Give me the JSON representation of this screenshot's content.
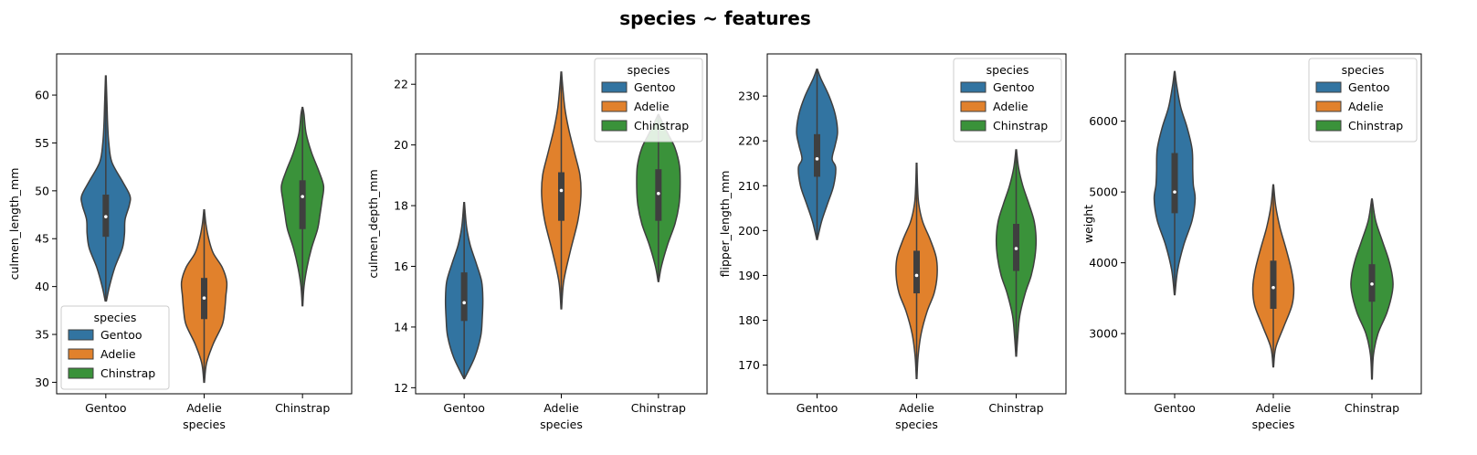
{
  "title": "species ~ features",
  "legend_title": "species",
  "colors": {
    "Gentoo": "#3274a1",
    "Adelie": "#e1812c",
    "Chinstrap": "#3a923a",
    "outline": "#3f3f3f",
    "box": "#3f3f3f",
    "median": "#ffffff"
  },
  "chart_data": [
    {
      "type": "violin",
      "xlabel": "species",
      "ylabel": "culmen_length_mm",
      "categories": [
        "Gentoo",
        "Adelie",
        "Chinstrap"
      ],
      "ylim": [
        28.8,
        64.3
      ],
      "yticks": [
        30,
        35,
        40,
        45,
        50,
        55,
        60
      ],
      "legend_position": "lower-left",
      "series": [
        {
          "name": "Gentoo",
          "min": 38.5,
          "q1": 45.2,
          "median": 47.3,
          "q3": 49.6,
          "max": 62.0,
          "profile": [
            [
              38.5,
              0.02
            ],
            [
              40,
              0.12
            ],
            [
              42,
              0.3
            ],
            [
              44,
              0.55
            ],
            [
              45.5,
              0.62
            ],
            [
              47,
              0.64
            ],
            [
              48.5,
              0.78
            ],
            [
              49.5,
              0.8
            ],
            [
              51,
              0.55
            ],
            [
              53,
              0.2
            ],
            [
              55,
              0.1
            ],
            [
              57,
              0.06
            ],
            [
              59,
              0.04
            ],
            [
              62,
              0.01
            ]
          ]
        },
        {
          "name": "Adelie",
          "min": 30.0,
          "q1": 36.6,
          "median": 38.8,
          "q3": 40.9,
          "max": 48.0,
          "profile": [
            [
              30,
              0.01
            ],
            [
              32,
              0.08
            ],
            [
              34,
              0.3
            ],
            [
              36,
              0.6
            ],
            [
              37.5,
              0.68
            ],
            [
              39,
              0.72
            ],
            [
              40.5,
              0.75
            ],
            [
              42,
              0.6
            ],
            [
              43.5,
              0.3
            ],
            [
              45,
              0.15
            ],
            [
              46.5,
              0.06
            ],
            [
              48,
              0.01
            ]
          ]
        },
        {
          "name": "Chinstrap",
          "min": 38.0,
          "q1": 46.0,
          "median": 49.4,
          "q3": 51.1,
          "max": 58.7,
          "profile": [
            [
              38,
              0.01
            ],
            [
              40,
              0.05
            ],
            [
              42,
              0.15
            ],
            [
              44,
              0.3
            ],
            [
              46,
              0.5
            ],
            [
              47.5,
              0.58
            ],
            [
              49,
              0.65
            ],
            [
              50.5,
              0.7
            ],
            [
              52,
              0.55
            ],
            [
              54,
              0.3
            ],
            [
              56,
              0.12
            ],
            [
              58,
              0.05
            ],
            [
              58.7,
              0.01
            ]
          ]
        }
      ]
    },
    {
      "type": "violin",
      "xlabel": "species",
      "ylabel": "culmen_depth_mm",
      "categories": [
        "Gentoo",
        "Adelie",
        "Chinstrap"
      ],
      "ylim": [
        11.8,
        23.0
      ],
      "yticks": [
        12,
        14,
        16,
        18,
        20,
        22
      ],
      "legend_position": "upper-right",
      "series": [
        {
          "name": "Gentoo",
          "min": 12.3,
          "q1": 14.2,
          "median": 14.8,
          "q3": 15.8,
          "max": 18.1,
          "profile": [
            [
              12.3,
              0.01
            ],
            [
              13,
              0.35
            ],
            [
              13.7,
              0.55
            ],
            [
              14.3,
              0.6
            ],
            [
              14.9,
              0.62
            ],
            [
              15.5,
              0.58
            ],
            [
              16.1,
              0.4
            ],
            [
              16.7,
              0.2
            ],
            [
              17.3,
              0.08
            ],
            [
              18.1,
              0.01
            ]
          ]
        },
        {
          "name": "Adelie",
          "min": 14.6,
          "q1": 17.5,
          "median": 18.5,
          "q3": 19.1,
          "max": 22.4,
          "profile": [
            [
              14.6,
              0.01
            ],
            [
              15.5,
              0.08
            ],
            [
              16.5,
              0.3
            ],
            [
              17.5,
              0.55
            ],
            [
              18.3,
              0.65
            ],
            [
              19,
              0.62
            ],
            [
              19.7,
              0.45
            ],
            [
              20.5,
              0.25
            ],
            [
              21.2,
              0.12
            ],
            [
              22,
              0.04
            ],
            [
              22.4,
              0.01
            ]
          ]
        },
        {
          "name": "Chinstrap",
          "min": 15.5,
          "q1": 17.5,
          "median": 18.4,
          "q3": 19.2,
          "max": 21.0,
          "profile": [
            [
              15.5,
              0.01
            ],
            [
              16,
              0.1
            ],
            [
              16.7,
              0.3
            ],
            [
              17.4,
              0.55
            ],
            [
              18,
              0.68
            ],
            [
              18.6,
              0.72
            ],
            [
              19.3,
              0.7
            ],
            [
              19.9,
              0.55
            ],
            [
              20.4,
              0.3
            ],
            [
              21,
              0.01
            ]
          ]
        }
      ]
    },
    {
      "type": "violin",
      "xlabel": "species",
      "ylabel": "flipper_length_mm",
      "categories": [
        "Gentoo",
        "Adelie",
        "Chinstrap"
      ],
      "ylim": [
        163.6,
        239.4
      ],
      "yticks": [
        170,
        180,
        190,
        200,
        210,
        220,
        230
      ],
      "legend_position": "upper-right",
      "series": [
        {
          "name": "Gentoo",
          "min": 198.0,
          "q1": 212.0,
          "median": 216.0,
          "q3": 221.5,
          "max": 236.0,
          "profile": [
            [
              198,
              0.01
            ],
            [
              202,
              0.15
            ],
            [
              206,
              0.35
            ],
            [
              210,
              0.55
            ],
            [
              214,
              0.62
            ],
            [
              216,
              0.5
            ],
            [
              219,
              0.6
            ],
            [
              222,
              0.68
            ],
            [
              226,
              0.6
            ],
            [
              230,
              0.4
            ],
            [
              234,
              0.12
            ],
            [
              236,
              0.01
            ]
          ]
        },
        {
          "name": "Adelie",
          "min": 167.0,
          "q1": 186.0,
          "median": 190.0,
          "q3": 195.5,
          "max": 215.0,
          "profile": [
            [
              167,
              0.01
            ],
            [
              172,
              0.05
            ],
            [
              177,
              0.15
            ],
            [
              182,
              0.35
            ],
            [
              186,
              0.58
            ],
            [
              190,
              0.68
            ],
            [
              194,
              0.65
            ],
            [
              198,
              0.45
            ],
            [
              202,
              0.2
            ],
            [
              206,
              0.07
            ],
            [
              210,
              0.03
            ],
            [
              215,
              0.01
            ]
          ]
        },
        {
          "name": "Chinstrap",
          "min": 172.0,
          "q1": 191.0,
          "median": 196.0,
          "q3": 201.5,
          "max": 218.0,
          "profile": [
            [
              172,
              0.01
            ],
            [
              176,
              0.05
            ],
            [
              181,
              0.12
            ],
            [
              186,
              0.3
            ],
            [
              190,
              0.5
            ],
            [
              194,
              0.62
            ],
            [
              198,
              0.66
            ],
            [
              202,
              0.6
            ],
            [
              206,
              0.42
            ],
            [
              210,
              0.22
            ],
            [
              214,
              0.08
            ],
            [
              218,
              0.01
            ]
          ]
        }
      ]
    },
    {
      "type": "violin",
      "xlabel": "species",
      "ylabel": "weight",
      "categories": [
        "Gentoo",
        "Adelie",
        "Chinstrap"
      ],
      "ylim": [
        2150,
        6950
      ],
      "yticks": [
        3000,
        4000,
        5000,
        6000
      ],
      "legend_position": "upper-right",
      "series": [
        {
          "name": "Gentoo",
          "min": 3550,
          "q1": 4700,
          "median": 5000,
          "q3": 5550,
          "max": 6700,
          "profile": [
            [
              3550,
              0.01
            ],
            [
              3900,
              0.1
            ],
            [
              4250,
              0.3
            ],
            [
              4600,
              0.58
            ],
            [
              4900,
              0.68
            ],
            [
              5100,
              0.62
            ],
            [
              5300,
              0.6
            ],
            [
              5600,
              0.58
            ],
            [
              5900,
              0.42
            ],
            [
              6200,
              0.2
            ],
            [
              6500,
              0.07
            ],
            [
              6700,
              0.01
            ]
          ]
        },
        {
          "name": "Adelie",
          "min": 2530,
          "q1": 3350,
          "median": 3650,
          "q3": 4030,
          "max": 5100,
          "profile": [
            [
              2530,
              0.01
            ],
            [
              2800,
              0.08
            ],
            [
              3100,
              0.35
            ],
            [
              3400,
              0.62
            ],
            [
              3650,
              0.68
            ],
            [
              3900,
              0.6
            ],
            [
              4200,
              0.42
            ],
            [
              4500,
              0.22
            ],
            [
              4800,
              0.08
            ],
            [
              5100,
              0.01
            ]
          ]
        },
        {
          "name": "Chinstrap",
          "min": 2360,
          "q1": 3450,
          "median": 3700,
          "q3": 3980,
          "max": 4900,
          "profile": [
            [
              2360,
              0.01
            ],
            [
              2700,
              0.05
            ],
            [
              3000,
              0.2
            ],
            [
              3300,
              0.5
            ],
            [
              3600,
              0.68
            ],
            [
              3800,
              0.68
            ],
            [
              4050,
              0.55
            ],
            [
              4300,
              0.35
            ],
            [
              4600,
              0.12
            ],
            [
              4900,
              0.01
            ]
          ]
        }
      ]
    }
  ]
}
